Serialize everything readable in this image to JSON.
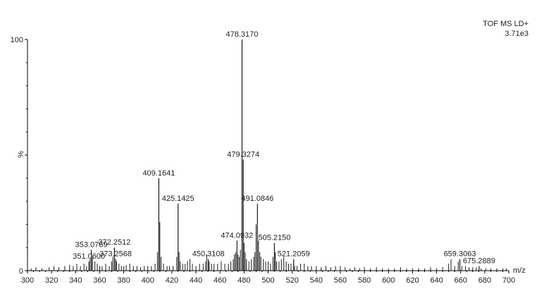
{
  "chart_data": {
    "type": "bar",
    "instrument": "TOF MS LD+",
    "intensity": "3.71e3",
    "xlabel": "m/z",
    "ylabel": "%",
    "xlim": [
      300,
      700
    ],
    "ylim": [
      0,
      100
    ],
    "x_ticks": [
      300,
      320,
      340,
      360,
      380,
      400,
      420,
      440,
      460,
      480,
      500,
      520,
      540,
      560,
      580,
      600,
      620,
      640,
      660,
      680,
      700
    ],
    "y_ticks": [
      0,
      100
    ],
    "colors": {
      "spectrum": "#1a1a1a",
      "axis": "#000000"
    },
    "labeled_peaks": [
      {
        "x": 478.317,
        "y": 100,
        "label": "478.3170"
      },
      {
        "x": 479.3274,
        "y": 48,
        "label": "479.3274"
      },
      {
        "x": 409.1641,
        "y": 40,
        "label": "409.1641"
      },
      {
        "x": 425.1425,
        "y": 29,
        "label": "425.1425"
      },
      {
        "x": 491.0846,
        "y": 29,
        "label": "491.0846"
      },
      {
        "x": 505.215,
        "y": 12,
        "label": "505.2150"
      },
      {
        "x": 474.0932,
        "y": 13,
        "label": "474.0932"
      },
      {
        "x": 353.0769,
        "y": 9,
        "label": "353.0769"
      },
      {
        "x": 372.2512,
        "y": 10,
        "label": "372.2512"
      },
      {
        "x": 373.2568,
        "y": 5,
        "label": "373.2568"
      },
      {
        "x": 351.06,
        "y": 4,
        "label": "351.0600"
      },
      {
        "x": 450.3108,
        "y": 5,
        "label": "450.3108"
      },
      {
        "x": 521.2059,
        "y": 5,
        "label": "521.2059"
      },
      {
        "x": 659.3063,
        "y": 5,
        "label": "659.3063"
      },
      {
        "x": 675.2889,
        "y": 2,
        "label": "675.2889"
      }
    ],
    "minor_peaks": [
      [
        303,
        1
      ],
      [
        307,
        1.5
      ],
      [
        312,
        1
      ],
      [
        318,
        1.5
      ],
      [
        322,
        2
      ],
      [
        326,
        1.5
      ],
      [
        331,
        2
      ],
      [
        335,
        2.5
      ],
      [
        338,
        2
      ],
      [
        341,
        3
      ],
      [
        344,
        2
      ],
      [
        347,
        3
      ],
      [
        349,
        2
      ],
      [
        352,
        5
      ],
      [
        354,
        6
      ],
      [
        356,
        4
      ],
      [
        358,
        3
      ],
      [
        360,
        2
      ],
      [
        362,
        2
      ],
      [
        365,
        3
      ],
      [
        368,
        2
      ],
      [
        370,
        4
      ],
      [
        371,
        6
      ],
      [
        374,
        4
      ],
      [
        376,
        3
      ],
      [
        378,
        2
      ],
      [
        380,
        2
      ],
      [
        382,
        2.5
      ],
      [
        385,
        3
      ],
      [
        388,
        2
      ],
      [
        391,
        2
      ],
      [
        394,
        1.5
      ],
      [
        397,
        2
      ],
      [
        400,
        2
      ],
      [
        403,
        2
      ],
      [
        406,
        3
      ],
      [
        408,
        8
      ],
      [
        410,
        21
      ],
      [
        411,
        6
      ],
      [
        413,
        3
      ],
      [
        416,
        2
      ],
      [
        418,
        2
      ],
      [
        421,
        2
      ],
      [
        424,
        6
      ],
      [
        426,
        8
      ],
      [
        427,
        4
      ],
      [
        429,
        3
      ],
      [
        431,
        3
      ],
      [
        433,
        4
      ],
      [
        435,
        5
      ],
      [
        437,
        3
      ],
      [
        440,
        2
      ],
      [
        443,
        3
      ],
      [
        446,
        3
      ],
      [
        448,
        4
      ],
      [
        449,
        7
      ],
      [
        451,
        4
      ],
      [
        453,
        3
      ],
      [
        455,
        3
      ],
      [
        458,
        3
      ],
      [
        461,
        4
      ],
      [
        464,
        3
      ],
      [
        467,
        3
      ],
      [
        469,
        4
      ],
      [
        471,
        5
      ],
      [
        472,
        7
      ],
      [
        473,
        8
      ],
      [
        475,
        7
      ],
      [
        476,
        6
      ],
      [
        477,
        9
      ],
      [
        480,
        12
      ],
      [
        481,
        8
      ],
      [
        482,
        5
      ],
      [
        484,
        4
      ],
      [
        486,
        5
      ],
      [
        488,
        6
      ],
      [
        489,
        8
      ],
      [
        490,
        20
      ],
      [
        492,
        13
      ],
      [
        493,
        8
      ],
      [
        494,
        6
      ],
      [
        496,
        5
      ],
      [
        498,
        4
      ],
      [
        500,
        4
      ],
      [
        502,
        3
      ],
      [
        504,
        6
      ],
      [
        506,
        8
      ],
      [
        507,
        4
      ],
      [
        509,
        4
      ],
      [
        511,
        5
      ],
      [
        513,
        6
      ],
      [
        515,
        4
      ],
      [
        517,
        3
      ],
      [
        519,
        3
      ],
      [
        522,
        2
      ],
      [
        524,
        2
      ],
      [
        527,
        3
      ],
      [
        530,
        3
      ],
      [
        533,
        2
      ],
      [
        536,
        2
      ],
      [
        540,
        2
      ],
      [
        544,
        1.5
      ],
      [
        548,
        2
      ],
      [
        552,
        1.5
      ],
      [
        556,
        2
      ],
      [
        560,
        2
      ],
      [
        564,
        1.5
      ],
      [
        568,
        1
      ],
      [
        572,
        1.5
      ],
      [
        576,
        1
      ],
      [
        580,
        1.5
      ],
      [
        585,
        1
      ],
      [
        590,
        1.5
      ],
      [
        595,
        1
      ],
      [
        600,
        1
      ],
      [
        605,
        1
      ],
      [
        610,
        1.5
      ],
      [
        615,
        1
      ],
      [
        620,
        1
      ],
      [
        625,
        1
      ],
      [
        630,
        1
      ],
      [
        635,
        1.5
      ],
      [
        640,
        1
      ],
      [
        645,
        1.5
      ],
      [
        650,
        3
      ],
      [
        652,
        5
      ],
      [
        655,
        2
      ],
      [
        658,
        4
      ],
      [
        661,
        2
      ],
      [
        664,
        2
      ],
      [
        667,
        1.5
      ],
      [
        670,
        1.5
      ],
      [
        673,
        1.5
      ],
      [
        677,
        1
      ],
      [
        681,
        1
      ],
      [
        685,
        1
      ],
      [
        690,
        1
      ],
      [
        695,
        1
      ],
      [
        698,
        1
      ]
    ]
  }
}
